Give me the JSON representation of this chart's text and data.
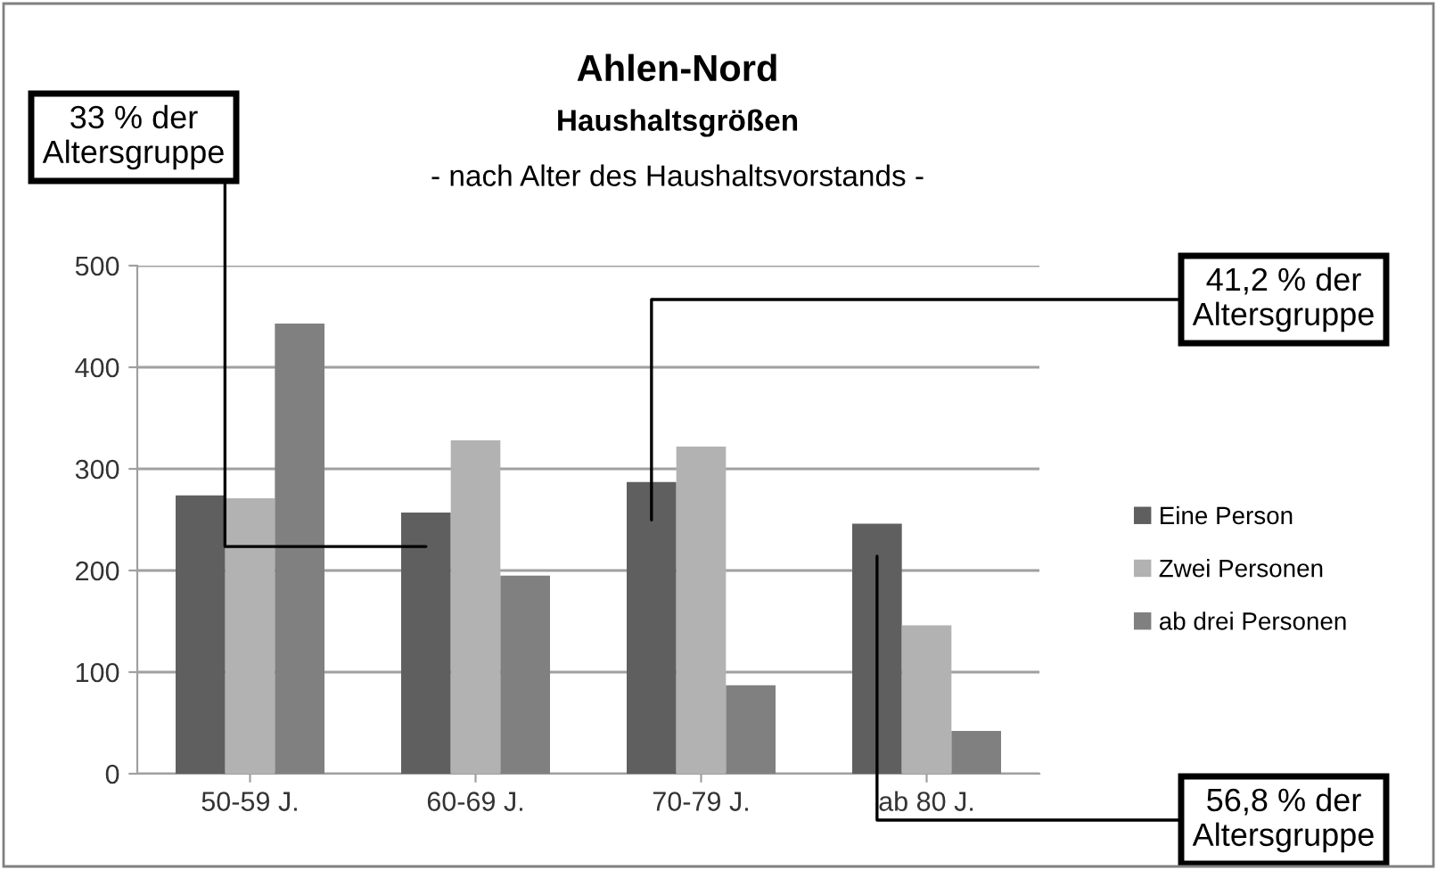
{
  "chart_data": {
    "type": "bar",
    "title": "Ahlen-Nord",
    "subtitle": "Haushaltsgrößen\n- nach Alter des Haushaltsvorstands -",
    "categories": [
      "50-59 J.",
      "60-69 J.",
      "70-79 J.",
      "ab 80 J."
    ],
    "series": [
      {
        "name": "Eine Person",
        "color": "#5f5f5f",
        "values": [
          274,
          257,
          287,
          246
        ]
      },
      {
        "name": "Zwei Personen",
        "color": "#b2b2b2",
        "values": [
          271,
          328,
          322,
          146
        ]
      },
      {
        "name": "ab drei Personen",
        "color": "#808080",
        "values": [
          443,
          195,
          87,
          42
        ]
      }
    ],
    "ylim": [
      0,
      500
    ],
    "yticks": [
      0,
      100,
      200,
      300,
      400,
      500
    ],
    "grid": "y",
    "legend": "right",
    "annotations": [
      "33 % der\nAltersgruppe",
      "41,2 % der\nAltersgruppe",
      "56,8 % der\nAltersgruppe"
    ]
  }
}
